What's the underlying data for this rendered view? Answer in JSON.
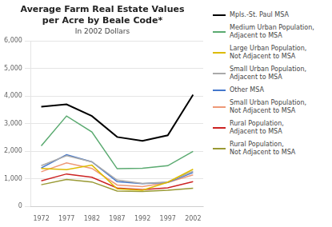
{
  "chart_data": {
    "type": "line",
    "title": "Average Farm Real Estate Values\nper Acre by Beale Code*",
    "subtitle": "In 2002 Dollars",
    "x": [
      1972,
      1977,
      1982,
      1987,
      1992,
      1997,
      2002
    ],
    "series": [
      {
        "name": "Mpls.-St. Paul MSA",
        "color": "#000000",
        "values": [
          3620,
          3700,
          3280,
          2520,
          2380,
          2580,
          4050
        ]
      },
      {
        "name": "Medium Urban Population,\nAdjacent to MSA",
        "color": "#5aaa70",
        "values": [
          2200,
          3280,
          2700,
          1370,
          1390,
          1480,
          2000
        ]
      },
      {
        "name": "Large Urban Population,\nNot Adjacent to MSA",
        "color": "#ddbb00",
        "values": [
          1380,
          1340,
          1500,
          640,
          590,
          880,
          1350
        ]
      },
      {
        "name": "Small Urban Population,\nAdjacent to MSA",
        "color": "#aaaaaa",
        "values": [
          1480,
          1840,
          1620,
          960,
          840,
          890,
          1280
        ]
      },
      {
        "name": "Other MSA",
        "color": "#4477cc",
        "values": [
          1400,
          1880,
          1620,
          900,
          830,
          870,
          1230
        ]
      },
      {
        "name": "Small Urban Population,\nNot Adjacent to MSA",
        "color": "#ee9977",
        "values": [
          1260,
          1580,
          1380,
          780,
          720,
          870,
          1150
        ]
      },
      {
        "name": "Rural Population,\nAdjacent to MSA",
        "color": "#cc2222",
        "values": [
          930,
          1180,
          1060,
          670,
          610,
          680,
          900
        ]
      },
      {
        "name": "Rural Population,\nNot Adjacent to MSA",
        "color": "#999933",
        "values": [
          790,
          980,
          890,
          560,
          550,
          590,
          660
        ]
      }
    ],
    "xlim": [
      1970,
      2004
    ],
    "xticks": [
      1972,
      1977,
      1982,
      1987,
      1992,
      1997,
      2002
    ],
    "ylim": [
      0,
      6000
    ],
    "yticks": [
      0,
      {
        "value": 1000,
        "label": "1,000"
      },
      {
        "value": 2000,
        "label": "2,000"
      },
      {
        "value": 3000,
        "label": "3,000"
      },
      {
        "value": 4000,
        "label": "4,000"
      },
      {
        "value": 5000,
        "label": "5,000"
      },
      {
        "value": 6000,
        "label": "6,000"
      }
    ],
    "grid": "y"
  }
}
